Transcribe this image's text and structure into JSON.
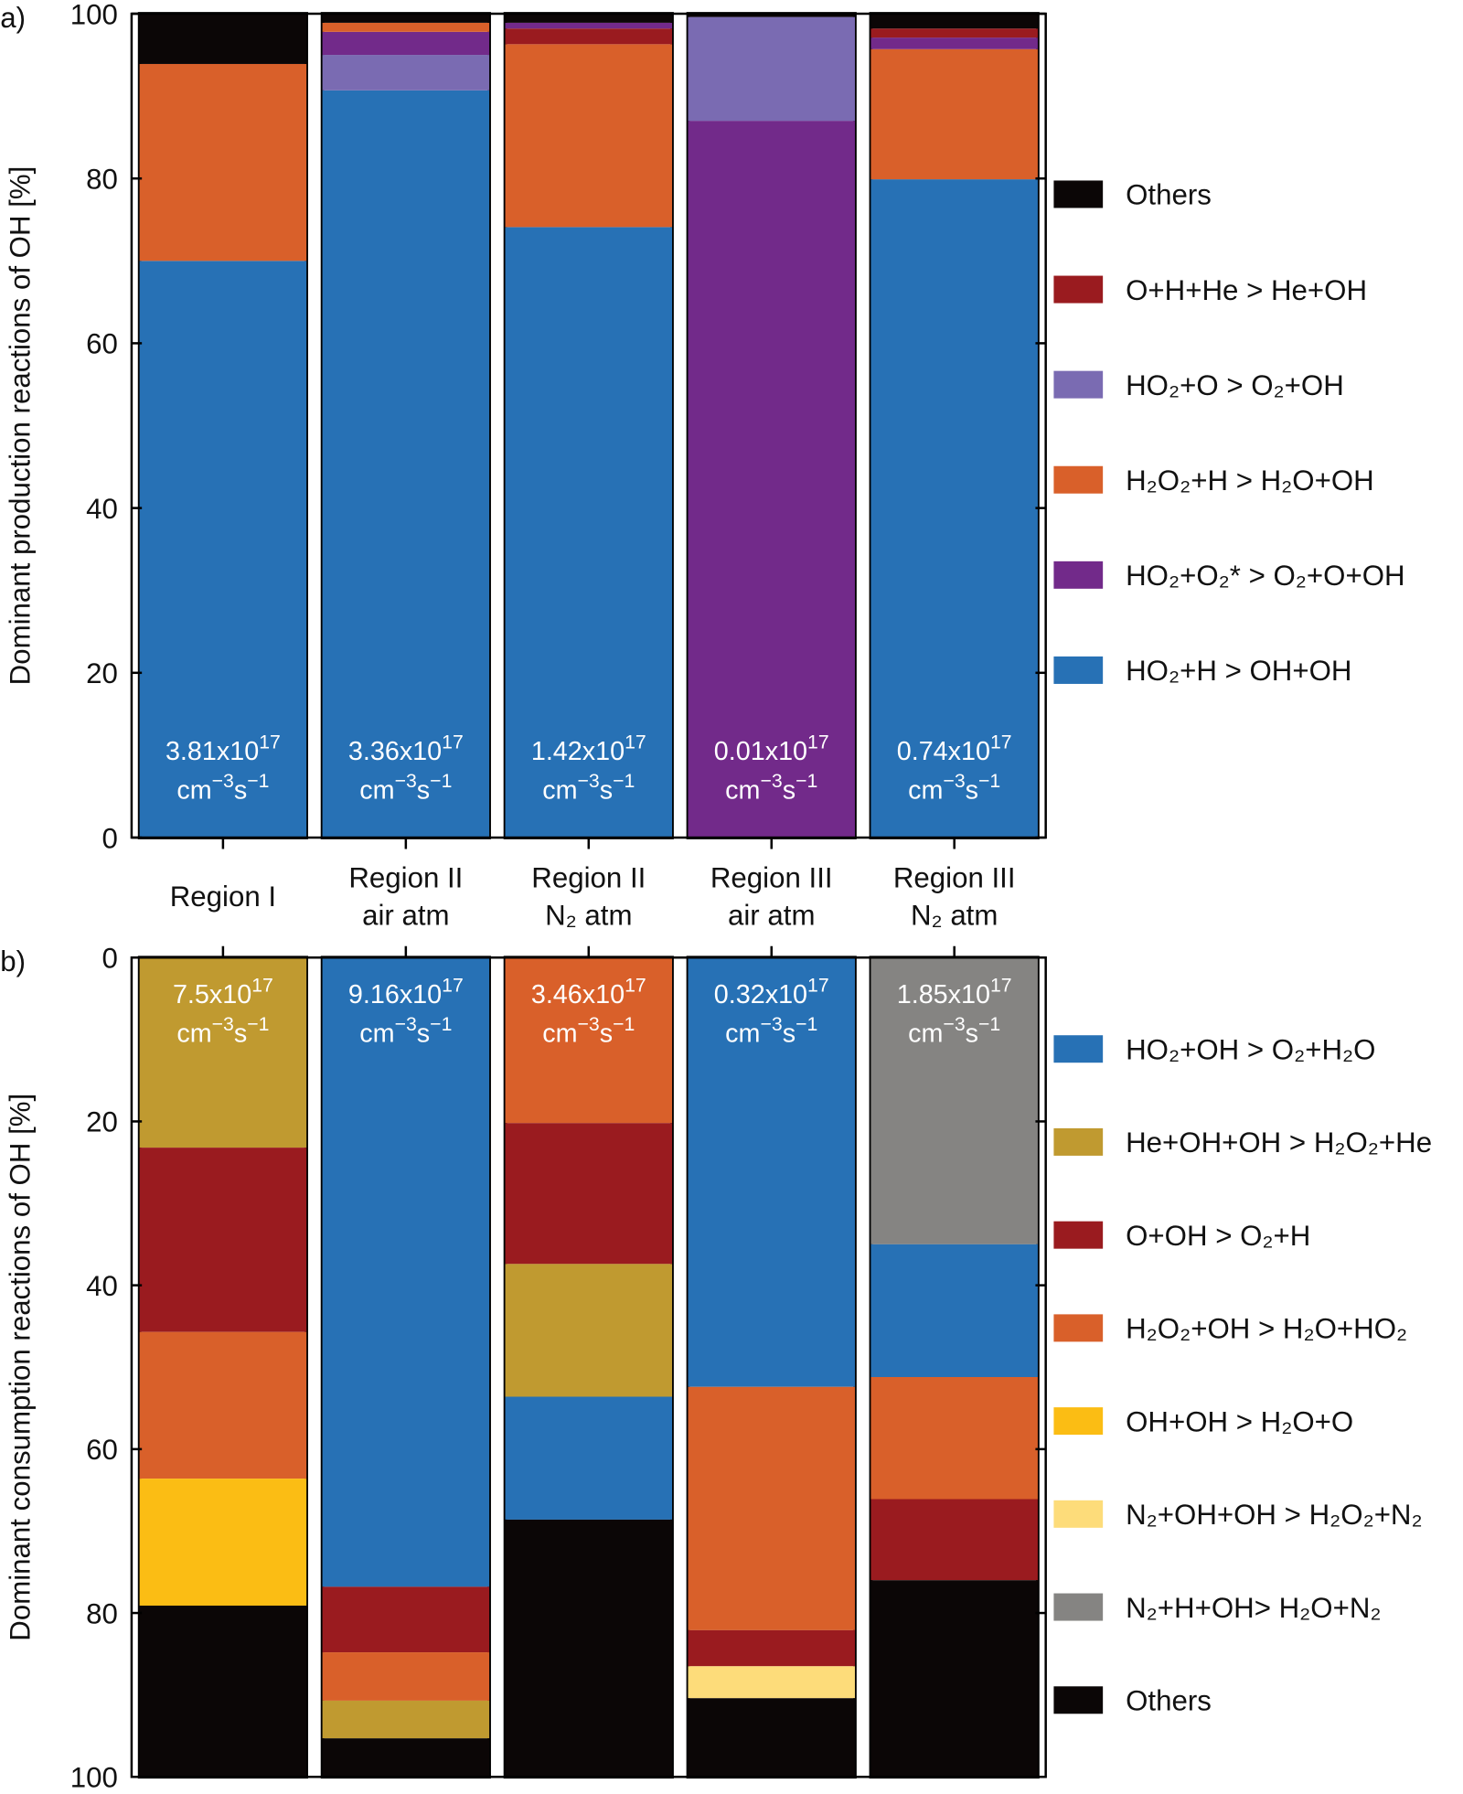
{
  "chart_data": [
    {
      "type": "stacked-bar",
      "panel_label": "a)",
      "ylabel": "Dominant production reactions of OH [%]",
      "categories": [
        [
          "Region I"
        ],
        [
          "Region II",
          "air atm"
        ],
        [
          "Region II",
          "N₂ atm"
        ],
        [
          "Region III",
          "air atm"
        ],
        [
          "Region III",
          "N₂ atm"
        ]
      ],
      "ylim": [
        0,
        100
      ],
      "yticks": [
        0,
        20,
        40,
        60,
        80,
        100
      ],
      "legend_reversed": true,
      "rate_label_position": "bottom",
      "series": [
        {
          "name": "HO₂+H > OH+OH",
          "color": "#2771b5",
          "values": [
            70,
            90.7,
            74.1,
            0,
            79.9
          ]
        },
        {
          "name": "HO₂+O₂* > O₂+O+OH",
          "color": "#722a8a",
          "values": [
            0,
            2.8,
            0.7,
            87,
            1.4
          ]
        },
        {
          "name": "H₂O₂+H > H₂O+OH",
          "color": "#d9602a",
          "values": [
            23.9,
            1.1,
            22.2,
            0,
            15.8
          ]
        },
        {
          "name": "HO₂+O > O₂+OH",
          "color": "#7a6bb2",
          "values": [
            0,
            4.3,
            0,
            12.6,
            0
          ]
        },
        {
          "name": "O+H+He > He+OH",
          "color": "#9a1b1f",
          "values": [
            0,
            0,
            1.9,
            0,
            1.1
          ]
        },
        {
          "name": "Others",
          "color": "#0b0606",
          "values": [
            6.1,
            1.1,
            1.1,
            0.4,
            1.8
          ]
        }
      ],
      "rate_labels": [
        {
          "coef": "3.81x10",
          "exp": "17"
        },
        {
          "coef": "3.36x10",
          "exp": "17"
        },
        {
          "coef": "1.42x10",
          "exp": "17"
        },
        {
          "coef": "0.01x10",
          "exp": "17"
        },
        {
          "coef": "0.74x10",
          "exp": "17"
        }
      ],
      "rate_unit": [
        "cm",
        "−3",
        "s",
        "−1"
      ]
    },
    {
      "type": "stacked-bar",
      "panel_label": "b)",
      "ylabel": "Dominant consumption reactions of OH [%]",
      "ylim": [
        100,
        0
      ],
      "yticks": [
        0,
        20,
        40,
        60,
        80,
        100
      ],
      "legend_reversed": false,
      "rate_label_position": "top",
      "series": [
        {
          "name": "HO₂+OH > O₂+H₂O",
          "color": "#2771b5",
          "values": [
            0,
            76.8,
            15,
            52.4,
            16.2
          ]
        },
        {
          "name": "He+OH+OH > H₂O₂+He",
          "color": "#c09a30",
          "values": [
            23.2,
            4.6,
            16.2,
            0,
            0
          ]
        },
        {
          "name": "O+OH > O₂+H",
          "color": "#9a1b1f",
          "values": [
            22.5,
            8,
            17.2,
            4.4,
            9.9
          ]
        },
        {
          "name": "H₂O₂+OH > H₂O+HO₂",
          "color": "#d9602a",
          "values": [
            17.9,
            5.9,
            20.2,
            29.7,
            14.9
          ]
        },
        {
          "name": "OH+OH >  H₂O+O",
          "color": "#fbbd14",
          "values": [
            15.5,
            0,
            0,
            0,
            0
          ]
        },
        {
          "name": "N₂+OH+OH > H₂O₂+N₂",
          "color": "#fddc7a",
          "values": [
            0,
            0,
            0,
            3.9,
            0
          ]
        },
        {
          "name": "N₂+H+OH> H₂O+N₂",
          "color": "#858482",
          "values": [
            0,
            0,
            0,
            0,
            35
          ]
        },
        {
          "name": "Others",
          "color": "#0b0606",
          "values": [
            20.9,
            4.7,
            31.4,
            9.6,
            24
          ]
        }
      ],
      "rate_labels": [
        {
          "coef": "7.5x10",
          "exp": "17"
        },
        {
          "coef": "9.16x10",
          "exp": "17"
        },
        {
          "coef": "3.46x10",
          "exp": "17"
        },
        {
          "coef": "0.32x10",
          "exp": "17"
        },
        {
          "coef": "1.85x10",
          "exp": "17"
        }
      ],
      "rate_unit": [
        "cm",
        "−3",
        "s",
        "−1"
      ]
    }
  ]
}
